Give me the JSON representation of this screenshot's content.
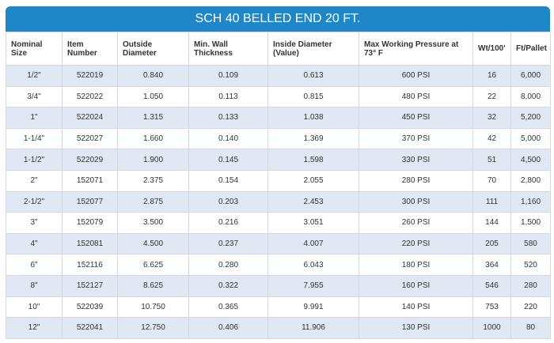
{
  "title": "SCH 40 BELLED END 20 FT.",
  "table": {
    "columns": [
      "Nominal Size",
      "Item Number",
      "Outside Diameter",
      "Min. Wall Thickness",
      "Inside Diameter (Value)",
      "Max Working Pressure at 73° F",
      "Wt/100'",
      "Ft/Pallet"
    ],
    "rows": [
      [
        "1/2\"",
        "522019",
        "0.840",
        "0.109",
        "0.613",
        "600 PSI",
        "16",
        "6,000"
      ],
      [
        "3/4\"",
        "522022",
        "1.050",
        "0.113",
        "0.815",
        "480 PSI",
        "22",
        "8,000"
      ],
      [
        "1\"",
        "522024",
        "1.315",
        "0.133",
        "1.038",
        "450 PSI",
        "32",
        "5,200"
      ],
      [
        "1-1/4\"",
        "522027",
        "1.660",
        "0.140",
        "1.369",
        "370 PSI",
        "42",
        "5,000"
      ],
      [
        "1-1/2\"",
        "522029",
        "1.900",
        "0.145",
        "1.598",
        "330 PSI",
        "51",
        "4,500"
      ],
      [
        "2\"",
        "152071",
        "2.375",
        "0.154",
        "2.055",
        "280 PSI",
        "70",
        "2,800"
      ],
      [
        "2-1/2\"",
        "152077",
        "2.875",
        "0.203",
        "2.453",
        "300 PSI",
        "111",
        "1,160"
      ],
      [
        "3\"",
        "152079",
        "3.500",
        "0.216",
        "3.051",
        "260 PSI",
        "144",
        "1,500"
      ],
      [
        "4\"",
        "152081",
        "4.500",
        "0.237",
        "4.007",
        "220 PSI",
        "205",
        "580"
      ],
      [
        "6\"",
        "152116",
        "6.625",
        "0.280",
        "6.043",
        "180 PSI",
        "364",
        "520"
      ],
      [
        "8\"",
        "152127",
        "8.625",
        "0.322",
        "7.955",
        "160 PSI",
        "546",
        "280"
      ],
      [
        "10\"",
        "522039",
        "10.750",
        "0.365",
        "9.991",
        "140 PSI",
        "753",
        "220"
      ],
      [
        "12\"",
        "522041",
        "12.750",
        "0.406",
        "11.906",
        "130 PSI",
        "1000",
        "80"
      ]
    ]
  }
}
